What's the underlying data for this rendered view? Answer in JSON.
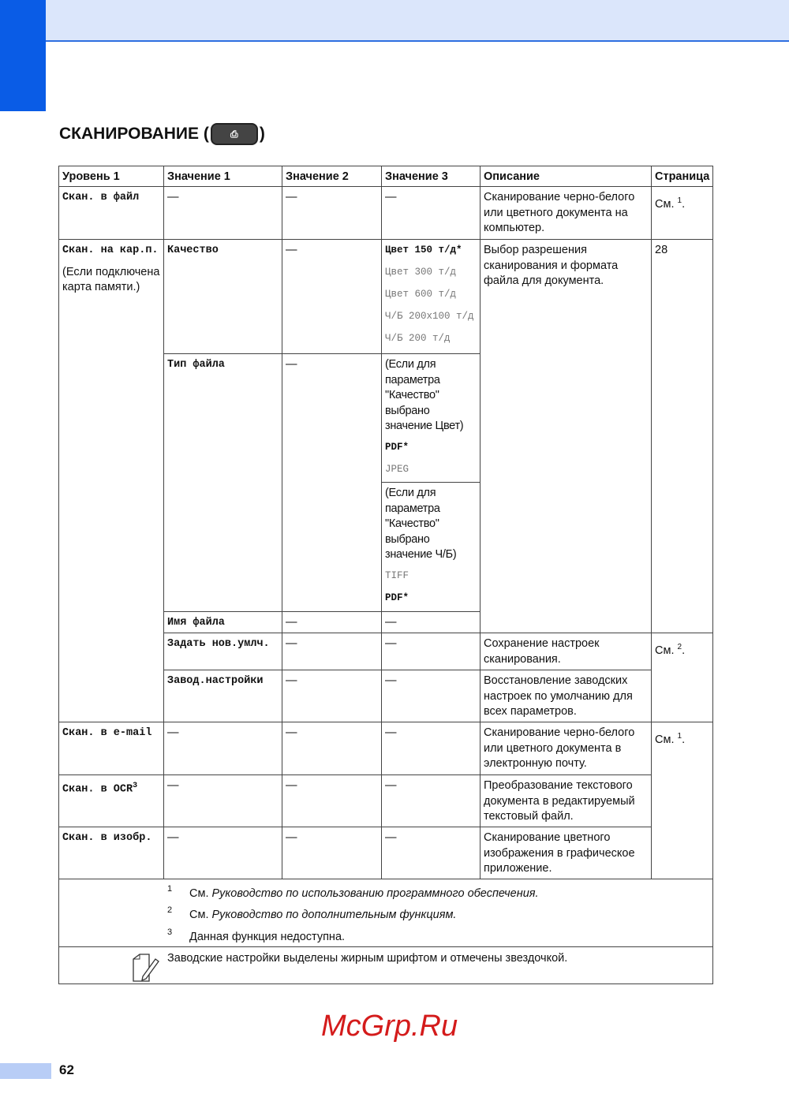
{
  "title": {
    "text": "СКАНИРОВАНИЕ (",
    "close": ")",
    "icon": "scan-button-icon"
  },
  "headers": [
    "Уровень 1",
    "Значение 1",
    "Значение 2",
    "Значение 3",
    "Описание",
    "Страница"
  ],
  "dash": "—",
  "rows": {
    "file": {
      "level": "Скан. в файл",
      "desc": "Сканирование черно-белого или цветного документа на компьютер.",
      "page": "См.",
      "ref": "1"
    },
    "card": {
      "level": "Скан. на кар.п.",
      "note": "(Если подключена карта памяти.)",
      "desc": "Выбор разрешения сканирования и формата файла для документа.",
      "page": "28",
      "quality": {
        "label": "Качество",
        "options": [
          "Цвет 150 т/д*",
          "Цвет 300 т/д",
          "Цвет 600 т/д",
          "Ч/Б 200x100 т/д",
          "Ч/Б 200 т/д"
        ]
      },
      "filetype": {
        "label": "Тип файла",
        "color_note": "(Если для параметра \"Качество\" выбрано значение Цвет)",
        "color_opts": [
          "PDF*",
          "JPEG"
        ],
        "bw_note": "(Если для параметра \"Качество\" выбрано значение Ч/Б)",
        "bw_opts": [
          "TIFF",
          "PDF*"
        ]
      },
      "filename": {
        "label": "Имя файла"
      },
      "setdefault": {
        "label": "Задать нов.умлч.",
        "desc": "Сохранение настроек сканирования.",
        "page": "См.",
        "ref": "2"
      },
      "factory": {
        "label": "Завод.настройки",
        "desc": "Восстановление заводских настроек по умолчанию для всех параметров."
      }
    },
    "email": {
      "level": "Скан. в e-mail",
      "desc": "Сканирование черно-белого или цветного документа в электронную почту.",
      "page": "См.",
      "ref": "1"
    },
    "ocr": {
      "level": "Скан. в OCR",
      "sup": "3",
      "desc": "Преобразование текстового документа в редактируемый текстовый файл."
    },
    "image": {
      "level": "Скан. в изобр.",
      "desc": "Сканирование цветного изображения в графическое приложение."
    }
  },
  "footnotes": [
    {
      "n": "1",
      "pre": "См. ",
      "it": "Руководство по использованию программного обеспечения."
    },
    {
      "n": "2",
      "pre": "См. ",
      "it": "Руководство по дополнительным функциям."
    },
    {
      "n": "3",
      "pre": "Данная функция недоступна.",
      "it": ""
    }
  ],
  "note": {
    "icon": "note-pencil-icon",
    "text": "Заводские настройки выделены жирным шрифтом и отмечены звездочкой."
  },
  "watermark": "McGrp.Ru",
  "page_number": "62",
  "colors": {
    "accent": "#0a5ce6",
    "header_band": "#dbe6fb",
    "watermark": "#d41b1b"
  }
}
